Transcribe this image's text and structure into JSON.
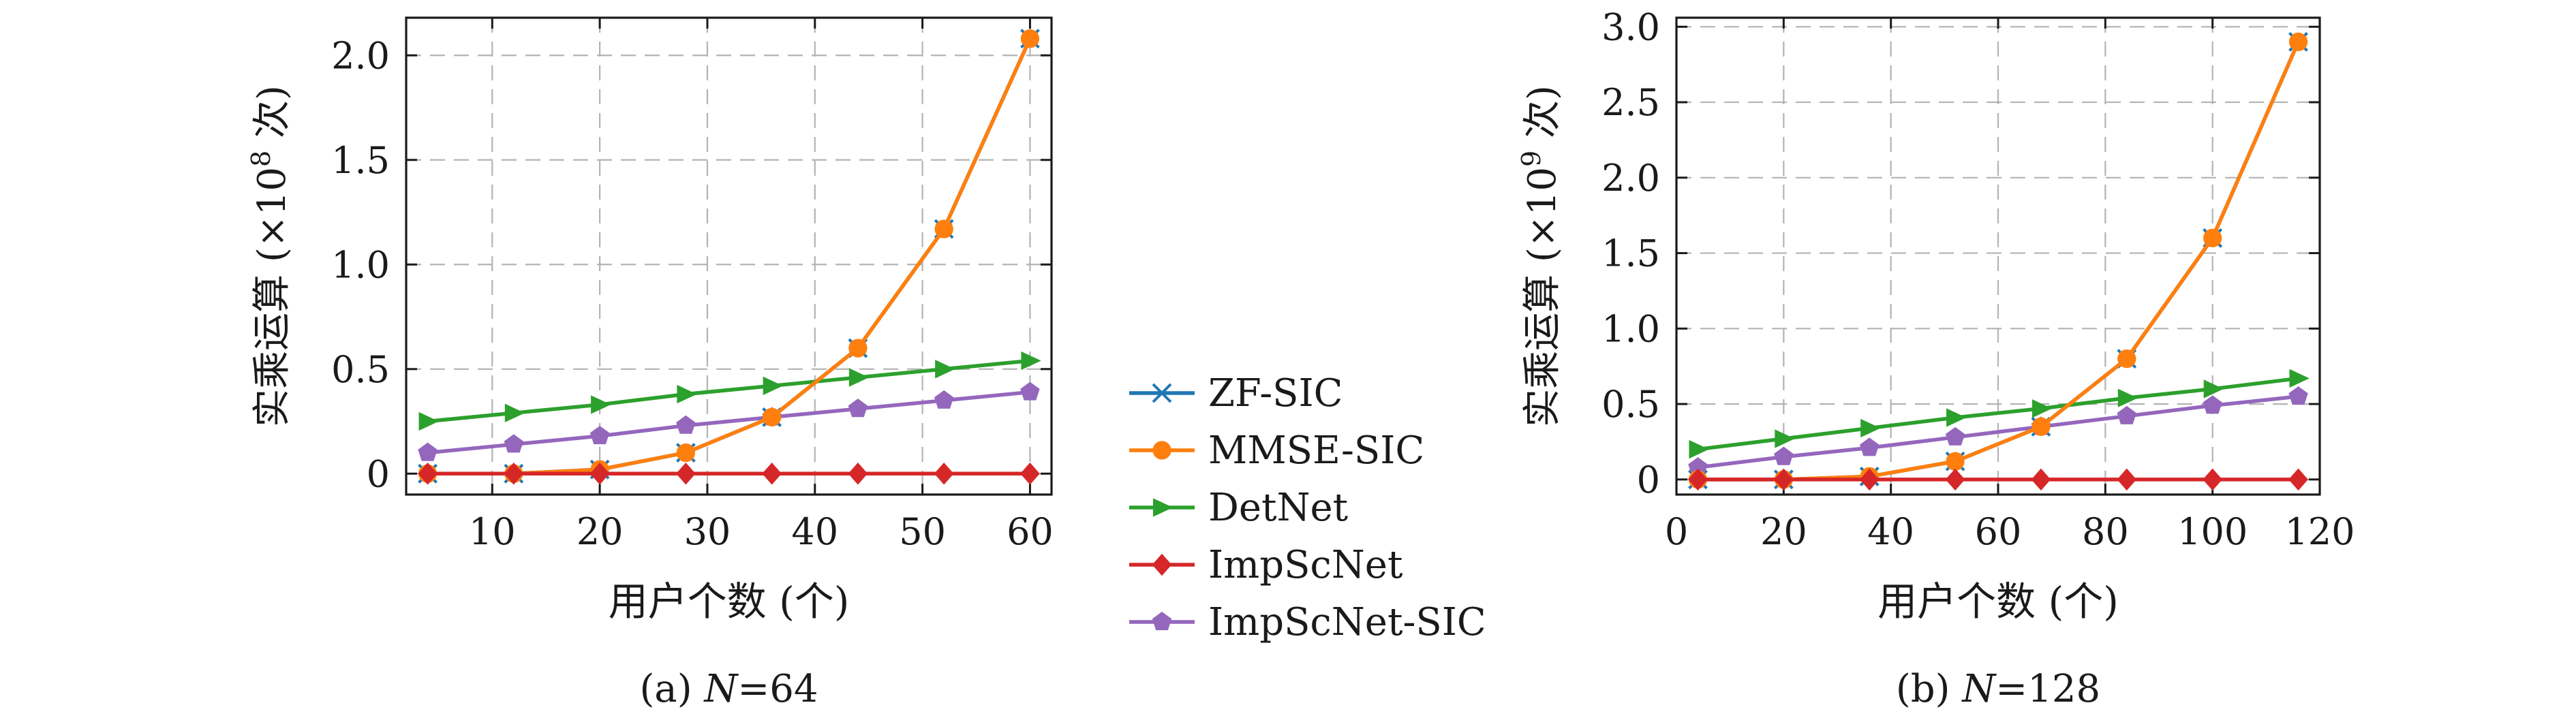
{
  "legend": [
    {
      "label": "ZF-SIC",
      "color": "#1f77b4",
      "marker": "x"
    },
    {
      "label": "MMSE-SIC",
      "color": "#ff7f0e",
      "marker": "circle"
    },
    {
      "label": "DetNet",
      "color": "#2ca02c",
      "marker": "triangle-right"
    },
    {
      "label": "ImpScNet",
      "color": "#d62728",
      "marker": "diamond"
    },
    {
      "label": "ImpScNet-SIC",
      "color": "#9467bd",
      "marker": "pentagon"
    }
  ],
  "chart_data": [
    {
      "type": "line",
      "caption_prefix": "(a) ",
      "caption_var": "N",
      "caption_rest": "=64",
      "xlabel": "用户个数 (个)",
      "ylabel_prefix": "实乘运算 (×10",
      "ylabel_exp": "8",
      "ylabel_suffix": " 次)",
      "xlim": [
        2,
        62
      ],
      "ylim": [
        -0.1,
        2.18
      ],
      "xticks": [
        10,
        20,
        30,
        40,
        50,
        60
      ],
      "xtick_labels": [
        "10",
        "20",
        "30",
        "40",
        "50",
        "60"
      ],
      "yticks": [
        0,
        0.5,
        1.0,
        1.5,
        2.0
      ],
      "ytick_labels": [
        "0",
        "0.5",
        "1.0",
        "1.5",
        "2.0"
      ],
      "grid": true,
      "x": [
        4,
        12,
        20,
        28,
        36,
        44,
        52,
        60
      ],
      "series": [
        {
          "name": "ZF-SIC",
          "values": [
            0.0,
            0.0,
            0.02,
            0.1,
            0.27,
            0.6,
            1.17,
            2.08
          ]
        },
        {
          "name": "MMSE-SIC",
          "values": [
            0.0,
            0.0,
            0.02,
            0.1,
            0.27,
            0.6,
            1.17,
            2.08
          ]
        },
        {
          "name": "DetNet",
          "values": [
            0.25,
            0.29,
            0.33,
            0.38,
            0.42,
            0.46,
            0.5,
            0.54
          ]
        },
        {
          "name": "ImpScNet",
          "values": [
            0.0,
            0.0,
            0.0,
            0.0,
            0.0,
            0.0,
            0.0,
            0.0
          ]
        },
        {
          "name": "ImpScNet-SIC",
          "values": [
            0.1,
            0.14,
            0.18,
            0.23,
            0.27,
            0.31,
            0.35,
            0.39
          ]
        }
      ]
    },
    {
      "type": "line",
      "caption_prefix": "(b) ",
      "caption_var": "N",
      "caption_rest": "=128",
      "xlabel": "用户个数 (个)",
      "ylabel_prefix": "实乘运算 (×10",
      "ylabel_exp": "9",
      "ylabel_suffix": " 次)",
      "xlim": [
        0,
        120
      ],
      "ylim": [
        -0.1,
        3.06
      ],
      "xticks": [
        0,
        20,
        40,
        60,
        80,
        100,
        120
      ],
      "xtick_labels": [
        "0",
        "20",
        "40",
        "60",
        "80",
        "100",
        "120"
      ],
      "yticks": [
        0,
        0.5,
        1.0,
        1.5,
        2.0,
        2.5,
        3.0
      ],
      "ytick_labels": [
        "0",
        "0.5",
        "1.0",
        "1.5",
        "2.0",
        "2.5",
        "3.0"
      ],
      "grid": true,
      "x": [
        4,
        20,
        36,
        52,
        68,
        84,
        100,
        116
      ],
      "series": [
        {
          "name": "ZF-SIC",
          "values": [
            0.0,
            0.0,
            0.02,
            0.12,
            0.35,
            0.8,
            1.6,
            2.9
          ]
        },
        {
          "name": "MMSE-SIC",
          "values": [
            0.0,
            0.0,
            0.02,
            0.12,
            0.35,
            0.8,
            1.6,
            2.9
          ]
        },
        {
          "name": "DetNet",
          "values": [
            0.2,
            0.27,
            0.34,
            0.41,
            0.47,
            0.54,
            0.6,
            0.67
          ]
        },
        {
          "name": "ImpScNet",
          "values": [
            0.0,
            0.0,
            0.0,
            0.0,
            0.0,
            0.0,
            0.0,
            0.0
          ]
        },
        {
          "name": "ImpScNet-SIC",
          "values": [
            0.08,
            0.15,
            0.21,
            0.28,
            0.35,
            0.42,
            0.49,
            0.55
          ]
        }
      ]
    }
  ]
}
